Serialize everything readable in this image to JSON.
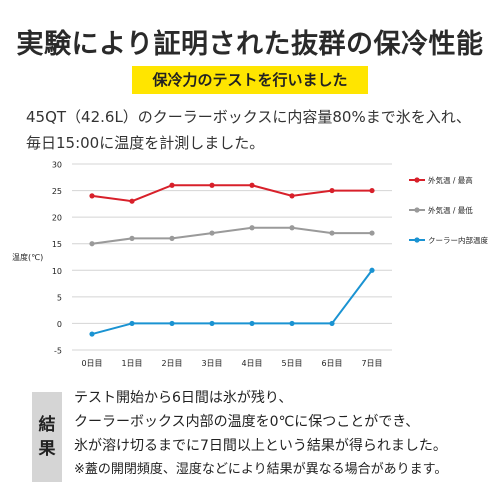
{
  "headline": "実験により証明された抜群の保冷性能",
  "banner": "保冷力のテストを行いました",
  "intro": {
    "line1": "45QT（42.6L）のクーラーボックスに内容量80%まで氷を入れ、",
    "line2": "毎日15:00に温度を計測しました。"
  },
  "chart_data": {
    "type": "line",
    "ylabel": "温度(℃)",
    "categories": [
      "0日目",
      "1日目",
      "2日目",
      "3日目",
      "4日目",
      "5日目",
      "6日目",
      "7日目"
    ],
    "ylim": [
      -5,
      30
    ],
    "yticks": [
      -5,
      0,
      5,
      10,
      15,
      20,
      25,
      30
    ],
    "grid": "horizontal",
    "legend_position": "right",
    "series": [
      {
        "name": "外気温 / 最高",
        "color": "#d8202a",
        "values": [
          24,
          23,
          26,
          26,
          26,
          24,
          25,
          25
        ]
      },
      {
        "name": "外気温 / 最低",
        "color": "#9a9a9a",
        "values": [
          15,
          16,
          16,
          17,
          18,
          18,
          17,
          17
        ]
      },
      {
        "name": "クーラー内部温度",
        "color": "#1a93d2",
        "values": [
          -2,
          0,
          0,
          0,
          0,
          0,
          0,
          10
        ]
      }
    ]
  },
  "result": {
    "tag_top": "結",
    "tag_bottom": "果",
    "line1": "テスト開始から6日間は氷が残り、",
    "line2": "クーラーボックス内部の温度を0℃に保つことができ、",
    "line3": "氷が溶け切るまでに7日間以上という結果が得られました。",
    "note": "※蓋の開閉頻度、湿度などにより結果が異なる場合があります。"
  }
}
